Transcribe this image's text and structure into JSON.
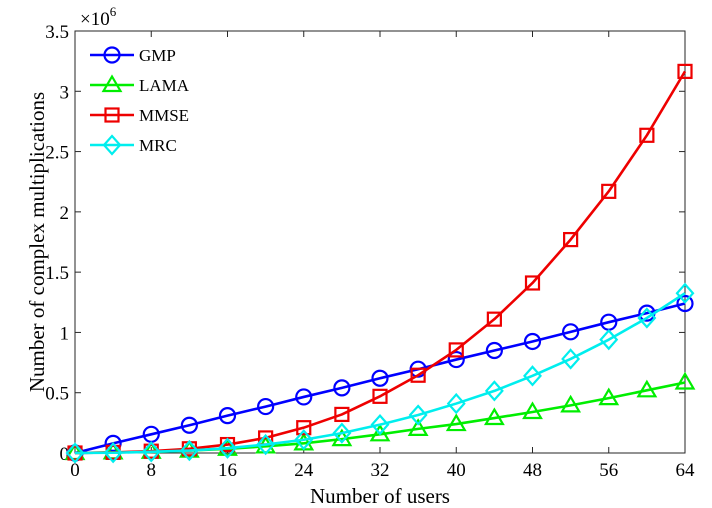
{
  "chart_data": {
    "type": "line",
    "xlabel": "Number of users",
    "ylabel": "Number of complex multiplications",
    "xlim": [
      0,
      64
    ],
    "ylim": [
      0,
      3.5
    ],
    "y_multiplier_base": "×10",
    "y_multiplier_exp": "6",
    "x_ticks": [
      0,
      8,
      16,
      24,
      32,
      40,
      48,
      56,
      64
    ],
    "x_tick_labels": [
      "0",
      "8",
      "16",
      "24",
      "32",
      "40",
      "48",
      "56",
      "64"
    ],
    "y_ticks": [
      0,
      0.5,
      1,
      1.5,
      2,
      2.5,
      3,
      3.5
    ],
    "y_tick_labels": [
      "0",
      "0.5",
      "1",
      "1.5",
      "2",
      "2.5",
      "3",
      "3.5"
    ],
    "grid": false,
    "legend_position": "top-left",
    "x": [
      0,
      4,
      8,
      12,
      16,
      20,
      24,
      28,
      32,
      36,
      40,
      44,
      48,
      52,
      56,
      60,
      64
    ],
    "series": [
      {
        "name": "GMP",
        "color": "#0000ff",
        "marker": "circle",
        "values": [
          0,
          0.08,
          0.155,
          0.23,
          0.31,
          0.385,
          0.465,
          0.54,
          0.62,
          0.695,
          0.775,
          0.85,
          0.925,
          1.005,
          1.085,
          1.16,
          1.24
        ]
      },
      {
        "name": "LAMA",
        "color": "#00ee00",
        "marker": "triangle",
        "values": [
          0,
          0.005,
          0.01,
          0.02,
          0.035,
          0.055,
          0.08,
          0.115,
          0.155,
          0.2,
          0.24,
          0.29,
          0.34,
          0.395,
          0.455,
          0.52,
          0.585
        ]
      },
      {
        "name": "MMSE",
        "color": "#ee0000",
        "marker": "square",
        "values": [
          0,
          0.005,
          0.015,
          0.035,
          0.07,
          0.125,
          0.21,
          0.32,
          0.47,
          0.645,
          0.855,
          1.11,
          1.41,
          1.77,
          2.17,
          2.635,
          3.165
        ]
      },
      {
        "name": "MRC",
        "color": "#00eeee",
        "marker": "diamond",
        "values": [
          0,
          0.002,
          0.01,
          0.02,
          0.04,
          0.07,
          0.11,
          0.165,
          0.235,
          0.315,
          0.41,
          0.515,
          0.64,
          0.78,
          0.94,
          1.12,
          1.325
        ]
      }
    ]
  }
}
